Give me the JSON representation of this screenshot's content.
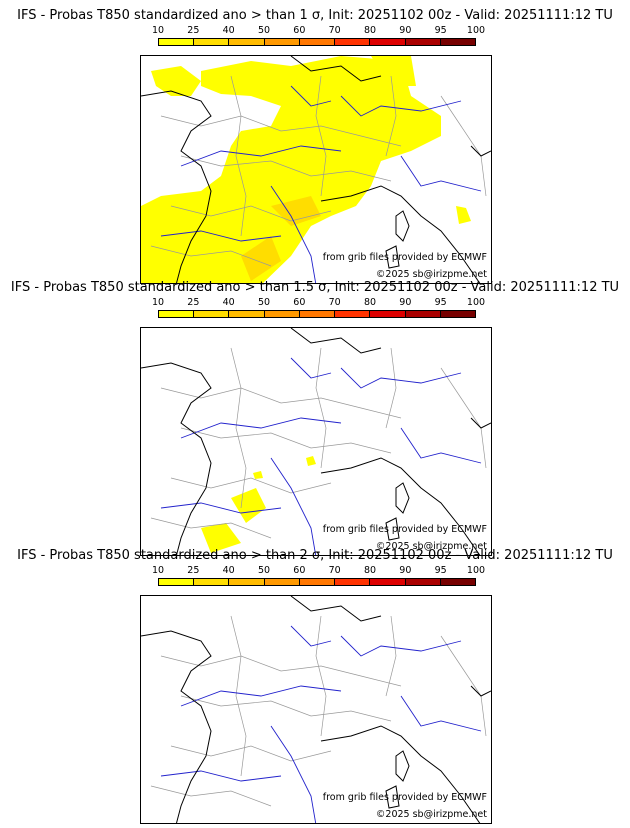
{
  "legend": {
    "ticks": [
      "10",
      "25",
      "40",
      "50",
      "60",
      "70",
      "80",
      "90",
      "95",
      "100"
    ],
    "colors": [
      "#ffff00",
      "#ffdd00",
      "#ffbb00",
      "#ff9900",
      "#ff7700",
      "#ff3300",
      "#dd0000",
      "#aa0000",
      "#770000"
    ]
  },
  "colors": {
    "coast": "#000000",
    "rivers": "#2222cc",
    "borders": "#999999",
    "prob_low": "#ffff00",
    "prob_mid": "#ffdd00"
  },
  "panels": [
    {
      "title": "IFS - Probas T850  standardized ano > than 1 σ, Init: 20251102 00z - Valid: 20251111:12 TU",
      "source": "from grib files provided by ECMWF",
      "copyright": "©2025 sb@irizpme.net"
    },
    {
      "title": "IFS - Probas T850  standardized ano > than 1.5 σ, Init: 20251102 00z - Valid: 20251111:12 TU",
      "source": "from grib files provided by ECMWF",
      "copyright": "©2025 sb@irizpme.net"
    },
    {
      "title": "IFS - Probas T850  standardized ano > than 2 σ, Init: 20251102 00z - Valid: 20251111:12 TU",
      "source": "from grib files provided by ECMWF",
      "copyright": "©2025 sb@irizpme.net"
    }
  ]
}
